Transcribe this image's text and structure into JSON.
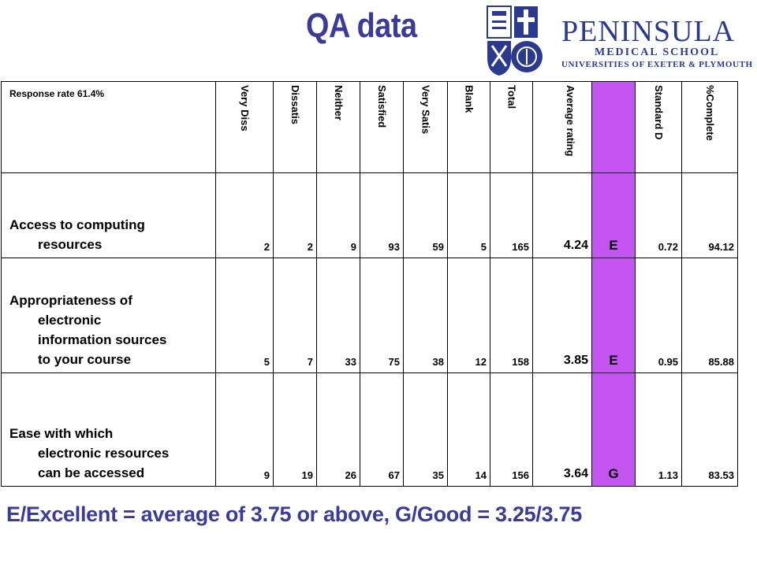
{
  "title": "QA data",
  "logo": {
    "name": "PENINSULA",
    "line1": "MEDICAL SCHOOL",
    "line2": "UNIVERSITIES OF EXETER & PLYMOUTH",
    "brand_color": "#2b3a8c"
  },
  "colors": {
    "title": "#3b3b98",
    "highlight_column": "#c355f0"
  },
  "table": {
    "response_rate": "Response rate 61.4%",
    "headers": [
      "Very Diss",
      "Dissatis",
      "Neither",
      "Satisfied",
      "Very Satis",
      "Blank",
      "Total",
      "Average rating",
      "",
      "Standard D",
      "%Complete"
    ],
    "rows": [
      {
        "label_first": "Access to computing",
        "label_rest": [
          "resources"
        ],
        "values": [
          "2",
          "2",
          "9",
          "93",
          "59",
          "5",
          "165"
        ],
        "average": "4.24",
        "grade": "E",
        "std": "0.72",
        "complete": "94.12"
      },
      {
        "label_first": "Appropriateness of",
        "label_rest": [
          "electronic",
          "information sources",
          "to your course"
        ],
        "values": [
          "5",
          "7",
          "33",
          "75",
          "38",
          "12",
          "158"
        ],
        "average": "3.85",
        "grade": "E",
        "std": "0.95",
        "complete": "85.88"
      },
      {
        "label_first": "Ease with which",
        "label_rest": [
          "electronic resources",
          "can be accessed"
        ],
        "values": [
          "9",
          "19",
          "26",
          "67",
          "35",
          "14",
          "156"
        ],
        "average": "3.64",
        "grade": "G",
        "std": "1.13",
        "complete": "83.53"
      }
    ]
  },
  "footer": "E/Excellent = average of 3.75 or above, G/Good = 3.25/3.75"
}
